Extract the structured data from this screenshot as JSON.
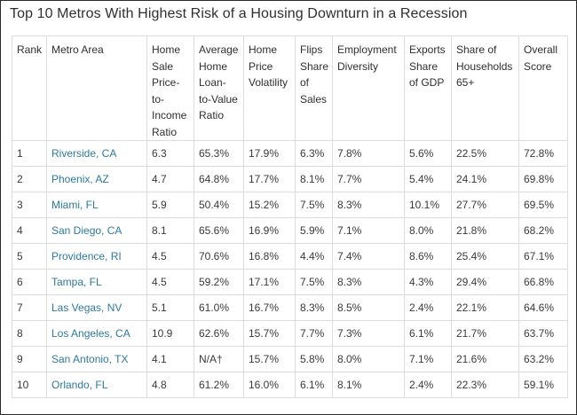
{
  "title": "Top 10 Metros With Highest Risk of a Housing Downturn in a Recession",
  "columns": [
    "Rank",
    "Metro Area",
    "Home Sale Price-to-Income Ratio",
    "Average Home Loan-to-Value Ratio",
    "Home Price Volatility",
    "Flips Share of Sales",
    "Employment Diversity",
    "Exports Share of GDP",
    "Share of Households 65+",
    "Overall Score"
  ],
  "column_lines": [
    [
      "Rank"
    ],
    [
      "Metro Area"
    ],
    [
      "Home",
      "Sale",
      "Price-",
      "to-",
      "Income",
      "Ratio"
    ],
    [
      "Average",
      "Home",
      "Loan-",
      "to-Value",
      "Ratio"
    ],
    [
      "Home",
      "Price",
      "Volatility"
    ],
    [
      "Flips",
      "Share",
      "of",
      "Sales"
    ],
    [
      "Employment",
      "Diversity"
    ],
    [
      "Exports",
      "Share",
      "of GDP"
    ],
    [
      "Share of",
      "Households",
      "65+"
    ],
    [
      "Overall",
      "Score"
    ]
  ],
  "rows": [
    [
      "1",
      "Riverside, CA",
      "6.3",
      "65.3%",
      "17.9%",
      "6.3%",
      "7.8%",
      "5.6%",
      "22.5%",
      "72.8%"
    ],
    [
      "2",
      "Phoenix, AZ",
      "4.7",
      "64.8%",
      "17.7%",
      "8.1%",
      "7.7%",
      "5.4%",
      "24.1%",
      "69.8%"
    ],
    [
      "3",
      "Miami, FL",
      "5.9",
      "50.4%",
      "15.2%",
      "7.5%",
      "8.3%",
      "10.1%",
      "27.7%",
      "69.5%"
    ],
    [
      "4",
      "San Diego, CA",
      "8.1",
      "65.6%",
      "16.9%",
      "5.9%",
      "7.1%",
      "8.0%",
      "21.8%",
      "68.2%"
    ],
    [
      "5",
      "Providence, RI",
      "4.5",
      "70.6%",
      "16.8%",
      "4.4%",
      "7.4%",
      "8.6%",
      "25.4%",
      "67.1%"
    ],
    [
      "6",
      "Tampa, FL",
      "4.5",
      "59.2%",
      "17.1%",
      "7.5%",
      "8.3%",
      "4.3%",
      "29.4%",
      "66.8%"
    ],
    [
      "7",
      "Las Vegas, NV",
      "5.1",
      "61.0%",
      "16.7%",
      "8.3%",
      "8.5%",
      "2.4%",
      "22.1%",
      "64.6%"
    ],
    [
      "8",
      "Los Angeles, CA",
      "10.9",
      "62.6%",
      "15.7%",
      "7.7%",
      "7.3%",
      "6.1%",
      "21.7%",
      "63.7%"
    ],
    [
      "9",
      "San Antonio, TX",
      "4.1",
      "N/A†",
      "15.7%",
      "5.8%",
      "8.0%",
      "7.1%",
      "21.6%",
      "63.2%"
    ],
    [
      "10",
      "Orlando, FL",
      "4.8",
      "61.2%",
      "16.0%",
      "6.1%",
      "8.1%",
      "2.4%",
      "22.3%",
      "59.1%"
    ]
  ],
  "colors": {
    "link": "#2e7a9a",
    "border": "#dcdcdc",
    "text": "#333333"
  }
}
